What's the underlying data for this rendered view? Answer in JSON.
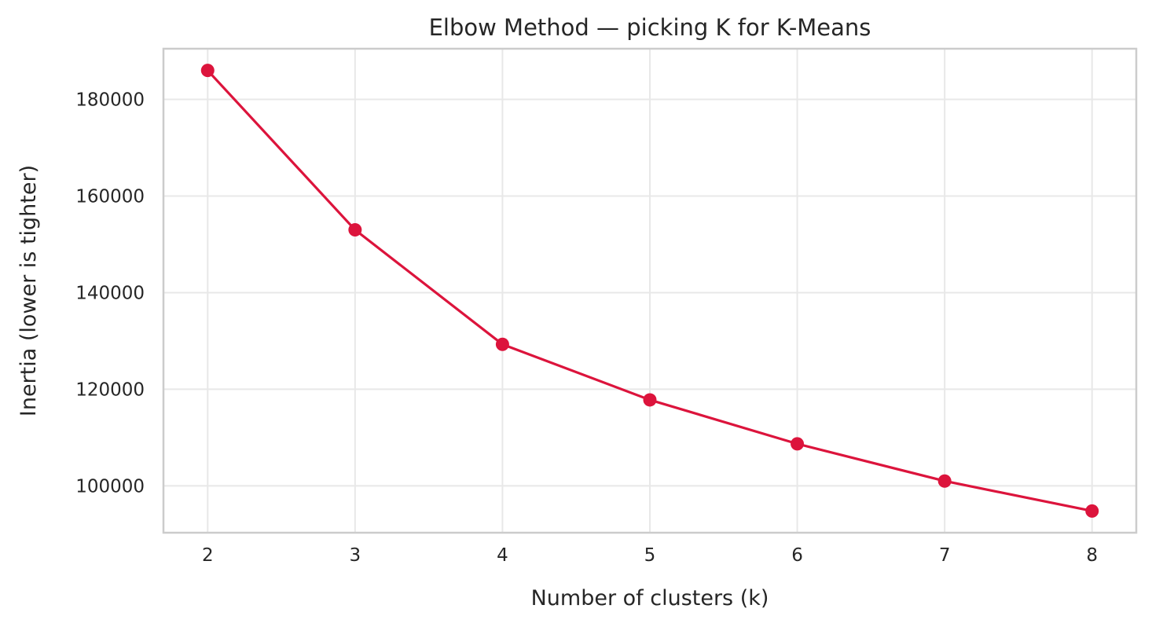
{
  "chart_data": {
    "type": "line",
    "title": "Elbow Method — picking K for K-Means",
    "xlabel": "Number of clusters (k)",
    "ylabel": "Inertia (lower is tighter)",
    "x": [
      2,
      3,
      4,
      5,
      6,
      7,
      8
    ],
    "series": [
      {
        "values": [
          186000,
          153000,
          129300,
          117800,
          108700,
          101000,
          94800
        ]
      }
    ],
    "xticks": [
      2,
      3,
      4,
      5,
      6,
      7,
      8
    ],
    "yticks": [
      100000,
      120000,
      140000,
      160000,
      180000
    ],
    "xlim": [
      1.7,
      8.3
    ],
    "ylim": [
      90300,
      190500
    ],
    "grid": true,
    "legend": "none",
    "colors": {
      "line": "#dc143c",
      "marker": "#dc143c",
      "grid": "#e8e8e8",
      "frame": "#cccccc",
      "text": "#262626"
    }
  }
}
